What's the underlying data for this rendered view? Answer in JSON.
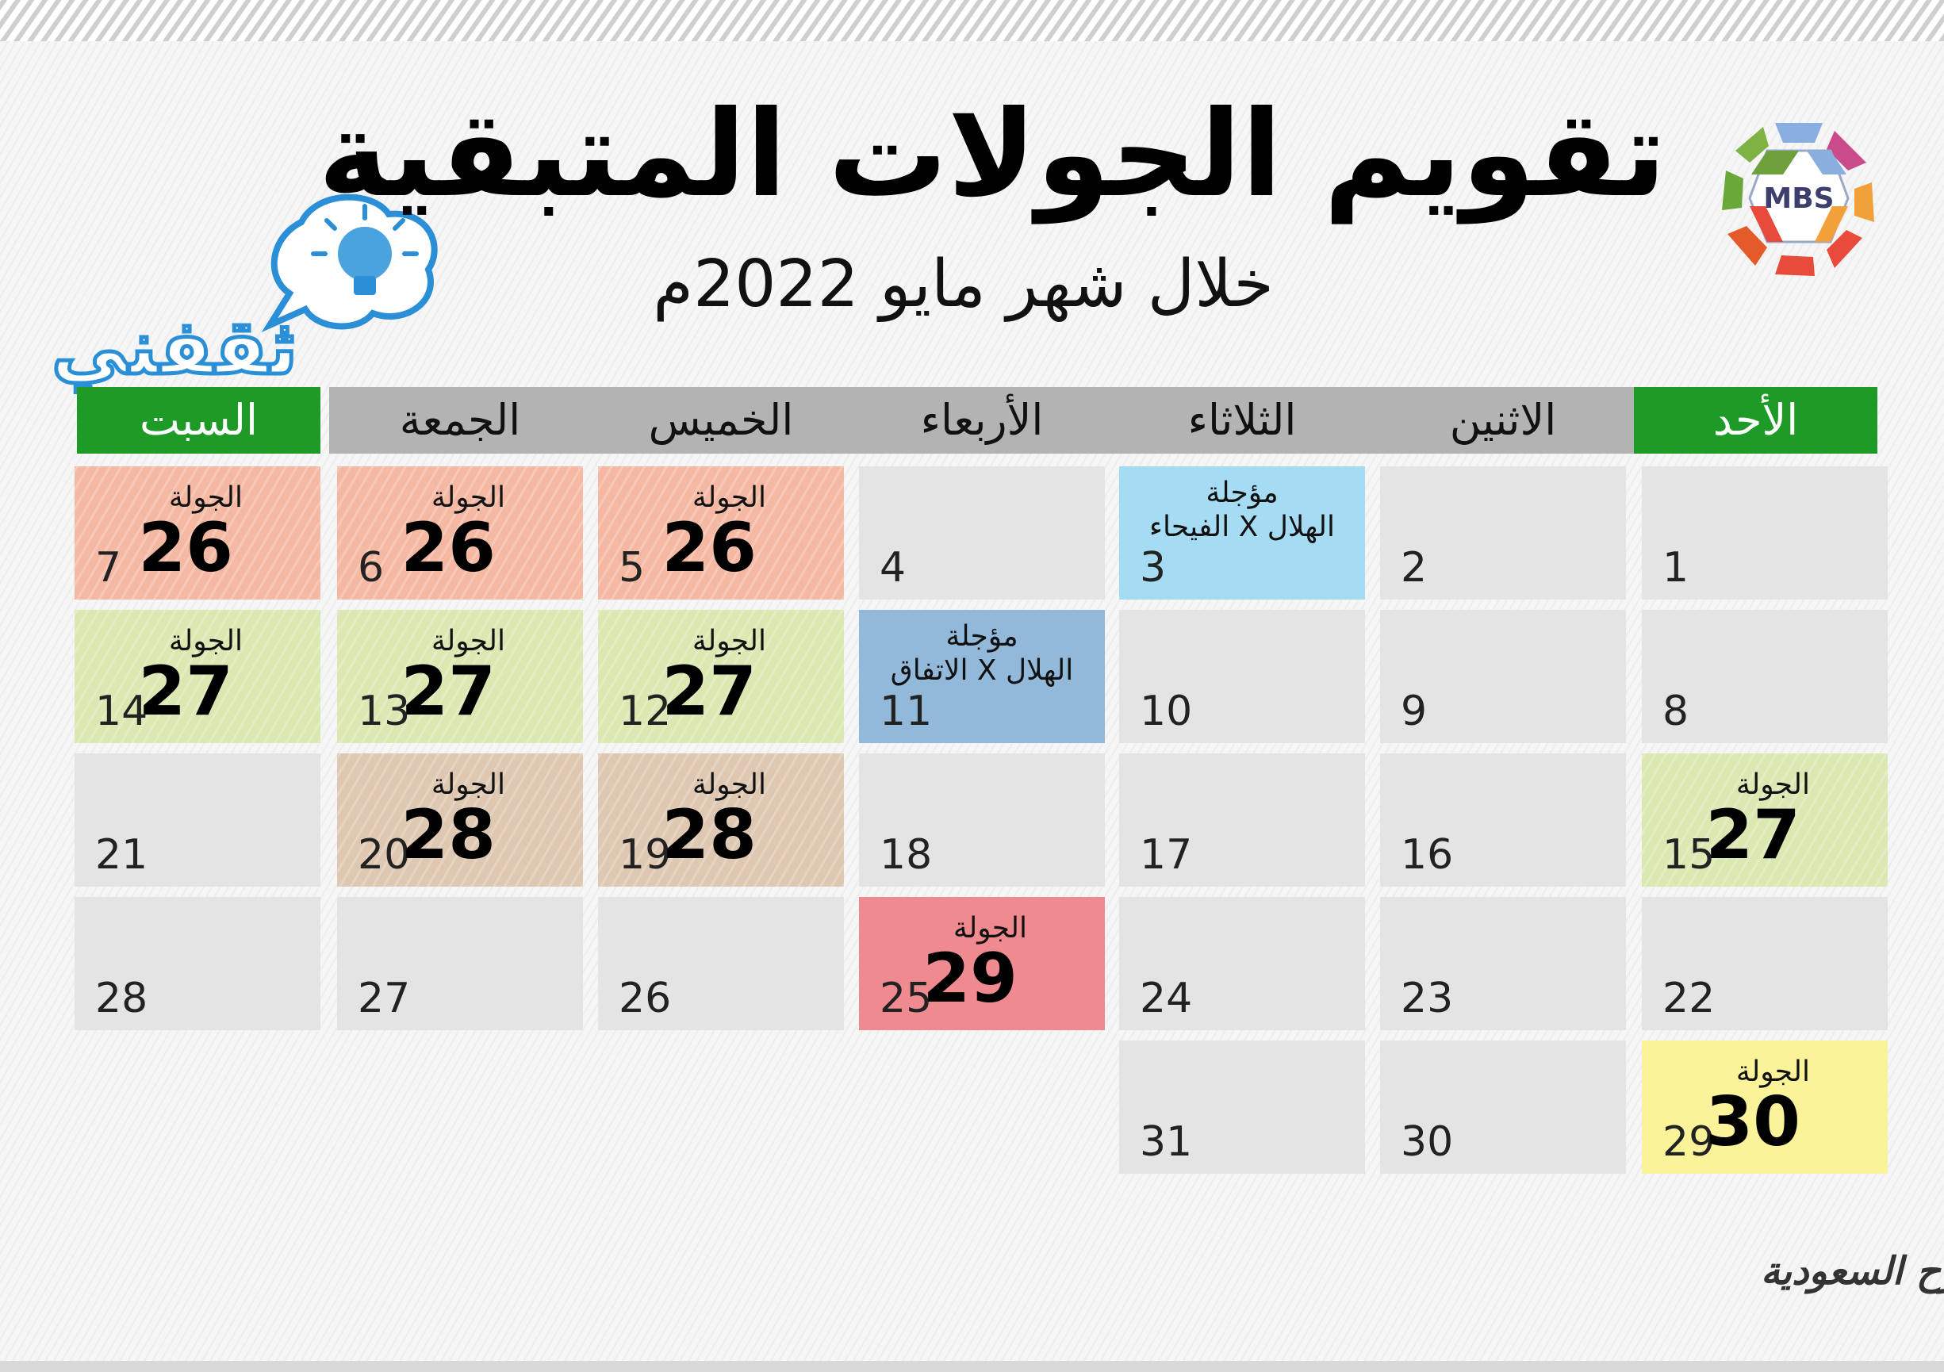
{
  "title": "تقويم الجولات المتبقية",
  "subtitle": "خلال شهر مايو 2022م",
  "logo": {
    "text": "MBS"
  },
  "brand": {
    "text": "ثقفني"
  },
  "signature": {
    "text": "روح السعودية"
  },
  "weekdays": [
    "الأحد",
    "الاثنين",
    "الثلاثاء",
    "الأربعاء",
    "الخميس",
    "الجمعة",
    "السبت"
  ],
  "round_label": "الجولة",
  "cells": [
    {
      "day": "1"
    },
    {
      "day": "2"
    },
    {
      "day": "3",
      "postponed": "مؤجلة\nالفيحاء X الهلال",
      "color": "lblue"
    },
    {
      "day": "4"
    },
    {
      "day": "5",
      "round": "26",
      "color": "salmon"
    },
    {
      "day": "6",
      "round": "26",
      "color": "salmon"
    },
    {
      "day": "7",
      "round": "26",
      "color": "salmon"
    },
    {
      "day": "8"
    },
    {
      "day": "9"
    },
    {
      "day": "10"
    },
    {
      "day": "11",
      "postponed": "مؤجلة\nالاتفاق X الهلال",
      "color": "steel"
    },
    {
      "day": "12",
      "round": "27",
      "color": "green"
    },
    {
      "day": "13",
      "round": "27",
      "color": "green"
    },
    {
      "day": "14",
      "round": "27",
      "color": "green"
    },
    {
      "day": "15",
      "round": "27",
      "color": "green"
    },
    {
      "day": "16"
    },
    {
      "day": "17"
    },
    {
      "day": "18"
    },
    {
      "day": "19",
      "round": "28",
      "color": "tan"
    },
    {
      "day": "20",
      "round": "28",
      "color": "tan"
    },
    {
      "day": "21"
    },
    {
      "day": "22"
    },
    {
      "day": "23"
    },
    {
      "day": "24"
    },
    {
      "day": "25",
      "round": "29",
      "color": "red"
    },
    {
      "day": "26"
    },
    {
      "day": "27"
    },
    {
      "day": "28"
    },
    {
      "day": "29",
      "round": "30",
      "color": "yellow"
    },
    {
      "day": "30"
    },
    {
      "day": "31"
    }
  ]
}
